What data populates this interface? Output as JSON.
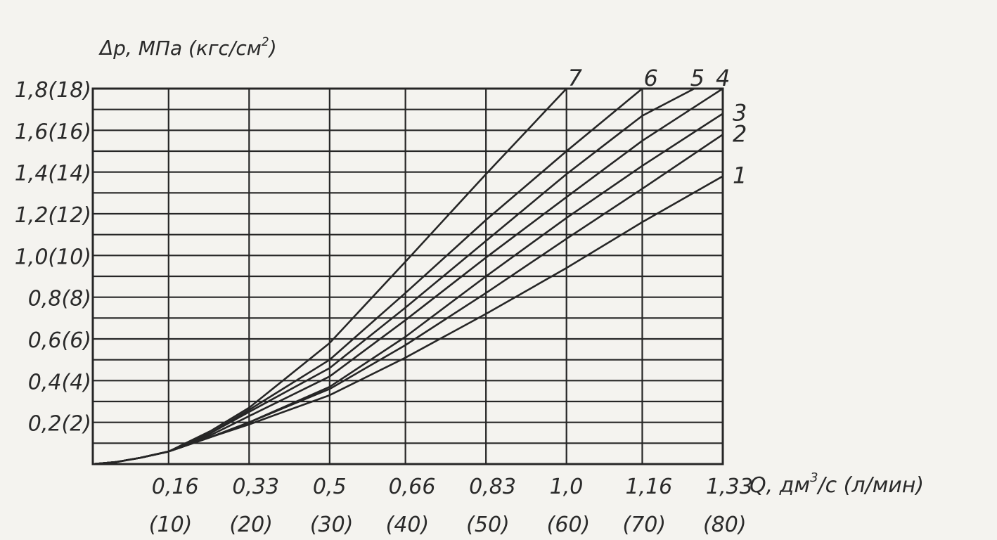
{
  "chart_data": {
    "type": "line",
    "ylabel": "Δр, МПа (кгс/см",
    "ylabel_sup": "2",
    "ylabel_tail": ")",
    "xlabel": "Q, дм",
    "xlabel_sup": "3",
    "xlabel_tail": "/с (л/мин)",
    "xlim": [
      0,
      1.33
    ],
    "ylim": [
      0,
      1.8
    ],
    "grid": true,
    "x_ticks": [
      {
        "value": 0.16,
        "label": "0,16",
        "sublabel": "(10)"
      },
      {
        "value": 0.33,
        "label": "0,33",
        "sublabel": "(20)"
      },
      {
        "value": 0.5,
        "label": "0,5",
        "sublabel": "(30)"
      },
      {
        "value": 0.66,
        "label": "0,66",
        "sublabel": "(40)"
      },
      {
        "value": 0.83,
        "label": "0,83",
        "sublabel": "(50)"
      },
      {
        "value": 1.0,
        "label": "1,0",
        "sublabel": "(60)"
      },
      {
        "value": 1.16,
        "label": "1,16",
        "sublabel": "(70)"
      },
      {
        "value": 1.33,
        "label": "1,33",
        "sublabel": "(80)"
      }
    ],
    "y_ticks": [
      {
        "value": 0.2,
        "label": "0,2(2)"
      },
      {
        "value": 0.4,
        "label": "0,4(4)"
      },
      {
        "value": 0.6,
        "label": "0,6(6)"
      },
      {
        "value": 0.8,
        "label": "0,8(8)"
      },
      {
        "value": 1.0,
        "label": "1,0(10)"
      },
      {
        "value": 1.2,
        "label": "1,2(12)"
      },
      {
        "value": 1.4,
        "label": "1,4(14)"
      },
      {
        "value": 1.6,
        "label": "1,6(16)"
      },
      {
        "value": 1.8,
        "label": "1,8(18)"
      }
    ],
    "series": [
      {
        "name": "1",
        "label_pos": "right",
        "points": [
          [
            0,
            0
          ],
          [
            0.05,
            0.01
          ],
          [
            0.1,
            0.03
          ],
          [
            0.16,
            0.06
          ],
          [
            0.25,
            0.13
          ],
          [
            0.33,
            0.19
          ],
          [
            0.5,
            0.33
          ],
          [
            0.66,
            0.51
          ],
          [
            0.83,
            0.72
          ],
          [
            1.0,
            0.94
          ],
          [
            1.16,
            1.16
          ],
          [
            1.33,
            1.38
          ]
        ]
      },
      {
        "name": "2",
        "label_pos": "right",
        "points": [
          [
            0,
            0
          ],
          [
            0.05,
            0.01
          ],
          [
            0.1,
            0.03
          ],
          [
            0.16,
            0.06
          ],
          [
            0.25,
            0.13
          ],
          [
            0.33,
            0.2
          ],
          [
            0.5,
            0.36
          ],
          [
            0.66,
            0.57
          ],
          [
            0.83,
            0.82
          ],
          [
            1.0,
            1.08
          ],
          [
            1.16,
            1.32
          ],
          [
            1.33,
            1.58
          ]
        ]
      },
      {
        "name": "3",
        "label_pos": "right",
        "points": [
          [
            0,
            0
          ],
          [
            0.05,
            0.01
          ],
          [
            0.1,
            0.03
          ],
          [
            0.16,
            0.06
          ],
          [
            0.25,
            0.13
          ],
          [
            0.33,
            0.2
          ],
          [
            0.5,
            0.37
          ],
          [
            0.66,
            0.61
          ],
          [
            0.83,
            0.9
          ],
          [
            1.0,
            1.18
          ],
          [
            1.16,
            1.43
          ],
          [
            1.33,
            1.68
          ]
        ]
      },
      {
        "name": "4",
        "label_pos": "top",
        "points": [
          [
            0,
            0
          ],
          [
            0.05,
            0.01
          ],
          [
            0.1,
            0.03
          ],
          [
            0.16,
            0.06
          ],
          [
            0.25,
            0.14
          ],
          [
            0.33,
            0.23
          ],
          [
            0.5,
            0.42
          ],
          [
            0.66,
            0.69
          ],
          [
            0.83,
            0.99
          ],
          [
            1.0,
            1.28
          ],
          [
            1.16,
            1.55
          ],
          [
            1.33,
            1.8
          ]
        ]
      },
      {
        "name": "5",
        "label_pos": "top",
        "points": [
          [
            0,
            0
          ],
          [
            0.05,
            0.01
          ],
          [
            0.1,
            0.03
          ],
          [
            0.16,
            0.06
          ],
          [
            0.25,
            0.15
          ],
          [
            0.33,
            0.25
          ],
          [
            0.5,
            0.46
          ],
          [
            0.66,
            0.75
          ],
          [
            0.83,
            1.07
          ],
          [
            1.0,
            1.39
          ],
          [
            1.16,
            1.67
          ],
          [
            1.27,
            1.8
          ]
        ]
      },
      {
        "name": "6",
        "label_pos": "top",
        "points": [
          [
            0,
            0
          ],
          [
            0.05,
            0.01
          ],
          [
            0.1,
            0.03
          ],
          [
            0.16,
            0.06
          ],
          [
            0.25,
            0.15
          ],
          [
            0.33,
            0.26
          ],
          [
            0.5,
            0.5
          ],
          [
            0.66,
            0.82
          ],
          [
            0.83,
            1.17
          ],
          [
            1.0,
            1.5
          ],
          [
            1.16,
            1.8
          ]
        ]
      },
      {
        "name": "7",
        "label_pos": "top",
        "points": [
          [
            0,
            0
          ],
          [
            0.05,
            0.01
          ],
          [
            0.1,
            0.03
          ],
          [
            0.16,
            0.06
          ],
          [
            0.25,
            0.16
          ],
          [
            0.33,
            0.27
          ],
          [
            0.5,
            0.58
          ],
          [
            0.66,
            0.97
          ],
          [
            0.83,
            1.39
          ],
          [
            1.0,
            1.8
          ]
        ]
      }
    ]
  }
}
